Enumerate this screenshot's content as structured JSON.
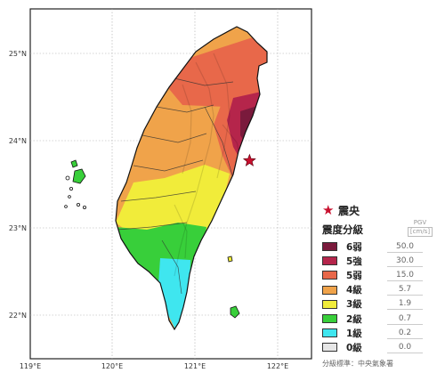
{
  "map": {
    "lon_ticks": [
      "119°E",
      "120°E",
      "121°E",
      "122°E"
    ],
    "lat_ticks": [
      "25°N",
      "24°N",
      "23°N",
      "22°N"
    ],
    "extent": {
      "lon": [
        119,
        122.4
      ],
      "lat": [
        21.5,
        25.5
      ]
    }
  },
  "epicenter": {
    "label": "震央",
    "lon": 121.66,
    "lat": 23.77,
    "color": "#c8102e",
    "icon": "star-icon"
  },
  "legend": {
    "title": "震度分級",
    "pgv_header": "PGV",
    "pgv_unit": "[cm/s]",
    "levels": [
      {
        "label": "6弱",
        "pgv": "50.0",
        "color": "#7a1a3c"
      },
      {
        "label": "5強",
        "pgv": "30.0",
        "color": "#b5254b"
      },
      {
        "label": "5弱",
        "pgv": "15.0",
        "color": "#e8684a"
      },
      {
        "label": "4級",
        "pgv": "5.7",
        "color": "#f0a34a"
      },
      {
        "label": "3級",
        "pgv": "1.9",
        "color": "#f1ec3a"
      },
      {
        "label": "2級",
        "pgv": "0.7",
        "color": "#38cf3a"
      },
      {
        "label": "1級",
        "pgv": "0.2",
        "color": "#3fe6ef"
      },
      {
        "label": "0級",
        "pgv": "0.0",
        "color": "#e6e6e6"
      }
    ],
    "footnote": "分級標準：中央氣象署"
  }
}
